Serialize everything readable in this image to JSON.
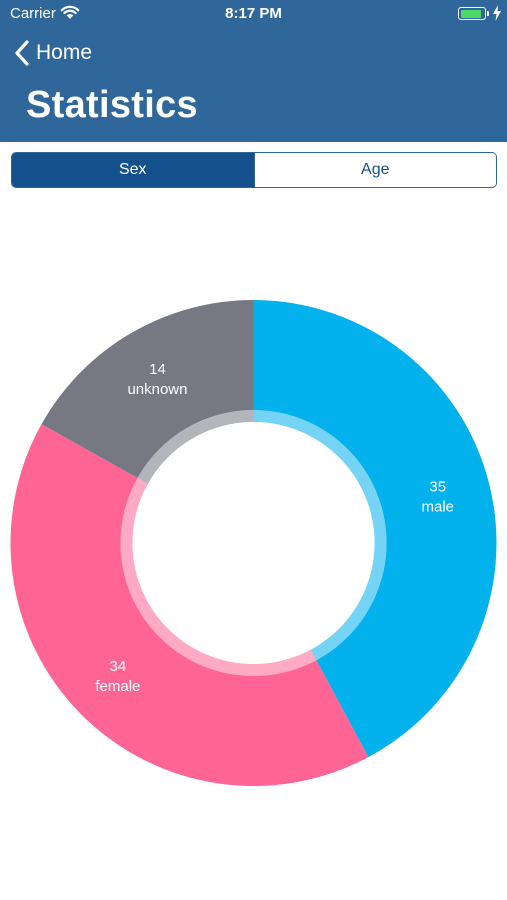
{
  "status_bar": {
    "carrier": "Carrier",
    "time": "8:17 PM",
    "battery_color": "#4cd964"
  },
  "nav": {
    "back_label": "Home",
    "title": "Statistics"
  },
  "segments": [
    {
      "label": "Sex",
      "selected": true
    },
    {
      "label": "Age",
      "selected": false
    }
  ],
  "colors": {
    "header": "#2f679a",
    "segment_selected": "#14508c"
  },
  "chart_data": {
    "type": "pie",
    "slices": [
      {
        "label": "male",
        "value": 35,
        "color": "#03b1ec"
      },
      {
        "label": "female",
        "value": 34,
        "color": "#fe6594"
      },
      {
        "label": "unknown",
        "value": 14,
        "color": "#767882"
      }
    ]
  }
}
